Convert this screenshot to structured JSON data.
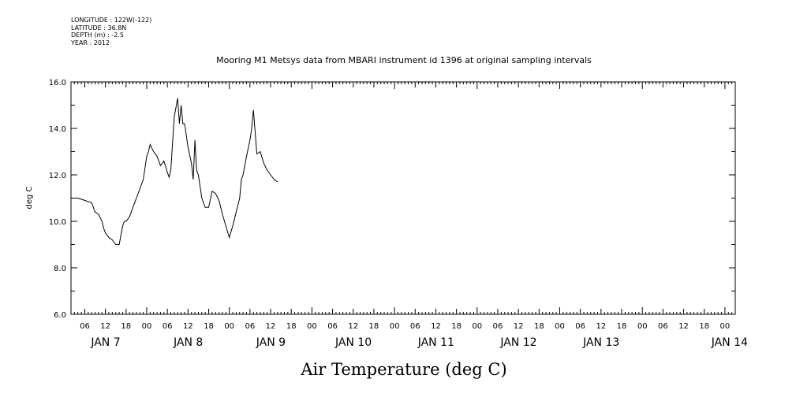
{
  "header": {
    "longitude": "LONGITUDE : 122W(-122)",
    "latitude": "LATITUDE : 36.8N",
    "depth": "DEPTH (m) : -2.5",
    "year": "YEAR : 2012"
  },
  "chart_data": {
    "type": "line",
    "title": "Mooring M1 Metsys data from MBARI instrument id 1396 at original sampling intervals",
    "xlabel": "Air Temperature (deg C)",
    "ylabel": "deg C",
    "ylim": [
      6.0,
      16.0
    ],
    "y_ticks": [
      "6.0",
      "8.0",
      "10.0",
      "12.0",
      "14.0",
      "16.0"
    ],
    "x_range_hours": "2012-01-06 02:00 to 2012-01-14 03:00",
    "x_hour_labels": [
      "06",
      "12",
      "18",
      "00",
      "06",
      "12",
      "18",
      "00",
      "06",
      "12",
      "18",
      "00",
      "06",
      "12",
      "18",
      "00",
      "06",
      "12",
      "18",
      "00",
      "06",
      "12",
      "18",
      "00",
      "06",
      "12",
      "18",
      "00",
      "06",
      "12",
      "18",
      "00"
    ],
    "x_day_labels": [
      "JAN  7",
      "JAN  8",
      "JAN  9",
      "JAN 10",
      "JAN 11",
      "JAN 12",
      "JAN 13",
      "JAN 14"
    ],
    "grid": false,
    "series": [
      {
        "color": "#000000",
        "segments": [
          {
            "x": [
              "2012-01-06 02:00",
              "2012-01-06 04:00",
              "2012-01-06 06:00",
              "2012-01-06 08:00",
              "2012-01-06 09:00",
              "2012-01-06 10:00",
              "2012-01-06 11:00",
              "2012-01-06 11:30",
              "2012-01-06 12:00",
              "2012-01-06 13:00",
              "2012-01-06 14:00",
              "2012-01-06 15:00",
              "2012-01-06 16:00",
              "2012-01-06 17:00",
              "2012-01-06 17:30",
              "2012-01-06 18:00",
              "2012-01-06 19:00",
              "2012-01-06 20:00",
              "2012-01-06 21:00",
              "2012-01-06 22:00",
              "2012-01-06 23:00",
              "2012-01-07 00:00",
              "2012-01-07 00:30",
              "2012-01-07 01:00",
              "2012-01-07 02:00",
              "2012-01-07 03:00",
              "2012-01-07 04:00",
              "2012-01-07 05:00",
              "2012-01-07 06:00",
              "2012-01-07 06:30",
              "2012-01-07 07:00",
              "2012-01-07 08:00",
              "2012-01-07 09:00",
              "2012-01-07 09:30",
              "2012-01-07 10:00",
              "2012-01-07 10:30",
              "2012-01-07 11:00",
              "2012-01-07 12:00",
              "2012-01-07 13:00",
              "2012-01-07 13:30",
              "2012-01-07 14:00",
              "2012-01-07 14:30",
              "2012-01-07 15:00",
              "2012-01-07 16:00",
              "2012-01-07 17:00",
              "2012-01-07 18:00",
              "2012-01-07 19:00",
              "2012-01-07 20:00",
              "2012-01-07 21:00",
              "2012-01-07 21:30",
              "2012-01-07 22:00",
              "2012-01-07 23:00",
              "2012-01-08 00:00",
              "2012-01-08 01:00",
              "2012-01-08 02:00",
              "2012-01-08 03:00",
              "2012-01-08 03:30",
              "2012-01-08 04:00",
              "2012-01-08 05:00",
              "2012-01-08 06:00",
              "2012-01-08 06:30",
              "2012-01-08 07:00",
              "2012-01-08 08:00",
              "2012-01-08 09:00",
              "2012-01-08 10:00",
              "2012-01-08 11:00",
              "2012-01-08 12:00",
              "2012-01-08 13:00",
              "2012-01-08 14:00",
              "2012-01-08 14:30"
            ],
            "y": [
              11.0,
              11.0,
              10.9,
              10.8,
              10.4,
              10.3,
              10.0,
              9.7,
              9.5,
              9.3,
              9.2,
              9.0,
              9.0,
              9.8,
              10.0,
              10.0,
              10.2,
              10.6,
              11.0,
              11.4,
              11.8,
              12.8,
              13.0,
              13.3,
              13.0,
              12.8,
              12.4,
              12.6,
              12.1,
              11.9,
              12.2,
              14.5,
              15.3,
              14.2,
              15.0,
              14.2,
              14.2,
              13.2,
              12.5,
              11.8,
              13.5,
              12.2,
              12.0,
              11.0,
              10.6,
              10.6,
              11.3,
              11.2,
              10.9,
              10.6,
              10.3,
              9.8,
              9.3,
              9.8,
              10.4,
              11.0,
              11.8,
              12.0,
              12.8,
              13.5,
              14.0,
              14.8,
              12.9,
              13.0,
              12.5,
              12.2,
              12.0,
              11.8,
              11.7,
              11.6
            ],
            "note_first_segment_only": ""
          }
        ]
      }
    ]
  }
}
